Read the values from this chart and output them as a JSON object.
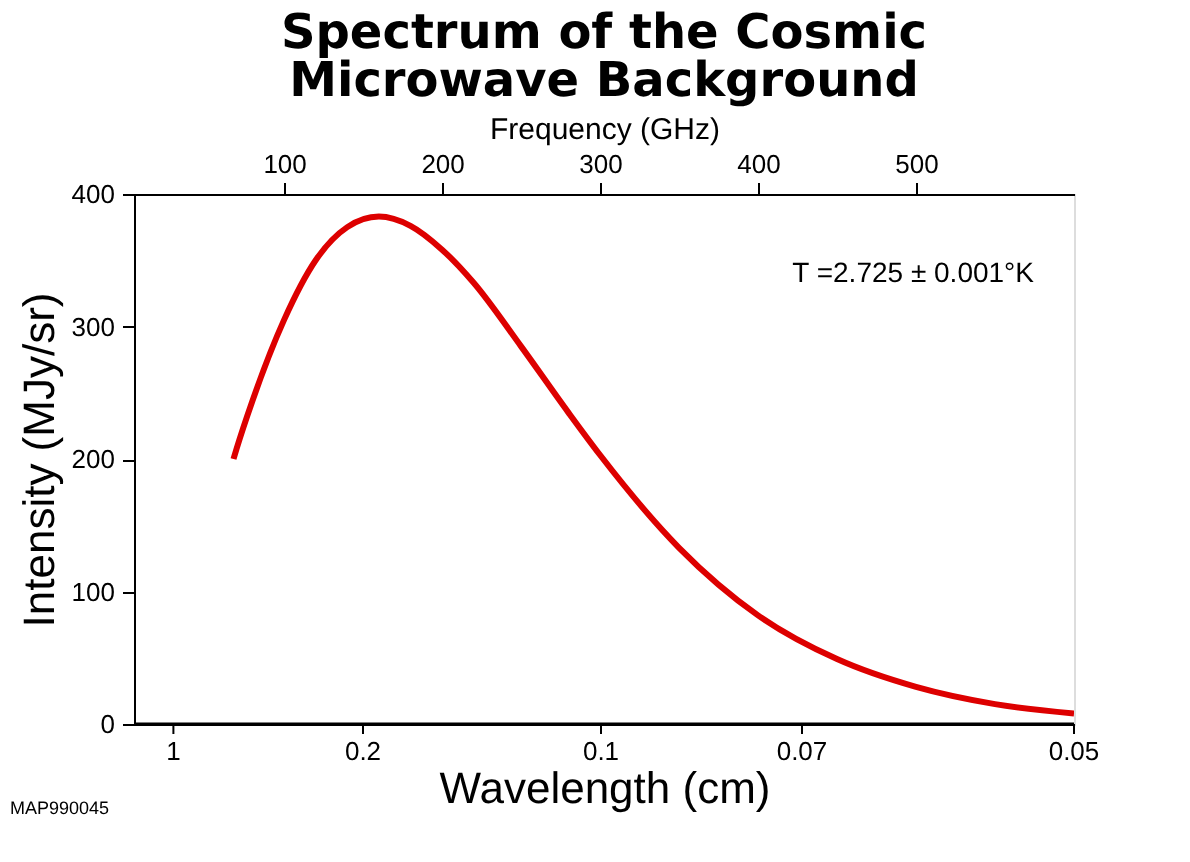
{
  "chart_data": {
    "type": "line",
    "title": [
      "Spectrum of the Cosmic",
      "Microwave Background"
    ],
    "xlabel": "Frequency (GHz)",
    "x2label": "Wavelength (cm)",
    "ylabel": "Intensity (MJy/sr)",
    "x": [
      68,
      70,
      80,
      100,
      120,
      140,
      160,
      180,
      200,
      220,
      250,
      280,
      300,
      350,
      400,
      450,
      500,
      550,
      600
    ],
    "series": [
      {
        "color": "#dd0000",
        "values": [
          200,
          208,
          244,
          305,
          350,
          375,
          383,
          376,
          358,
          333,
          285,
          235,
          203,
          133,
          82,
          49,
          28,
          15,
          8
        ]
      }
    ],
    "xlim": [
      5,
      600
    ],
    "xticks": [
      100,
      200,
      300,
      400,
      500
    ],
    "ylim": [
      0,
      400
    ],
    "yticks": [
      0,
      100,
      200,
      300,
      400
    ],
    "grid": false,
    "marker": "none",
    "line_style": "solid",
    "annotations": [
      "T =2.725 ± 0.001°K",
      "MAP990045",
      "1",
      "0.2",
      "0.1",
      "0.07",
      "0.05"
    ]
  }
}
